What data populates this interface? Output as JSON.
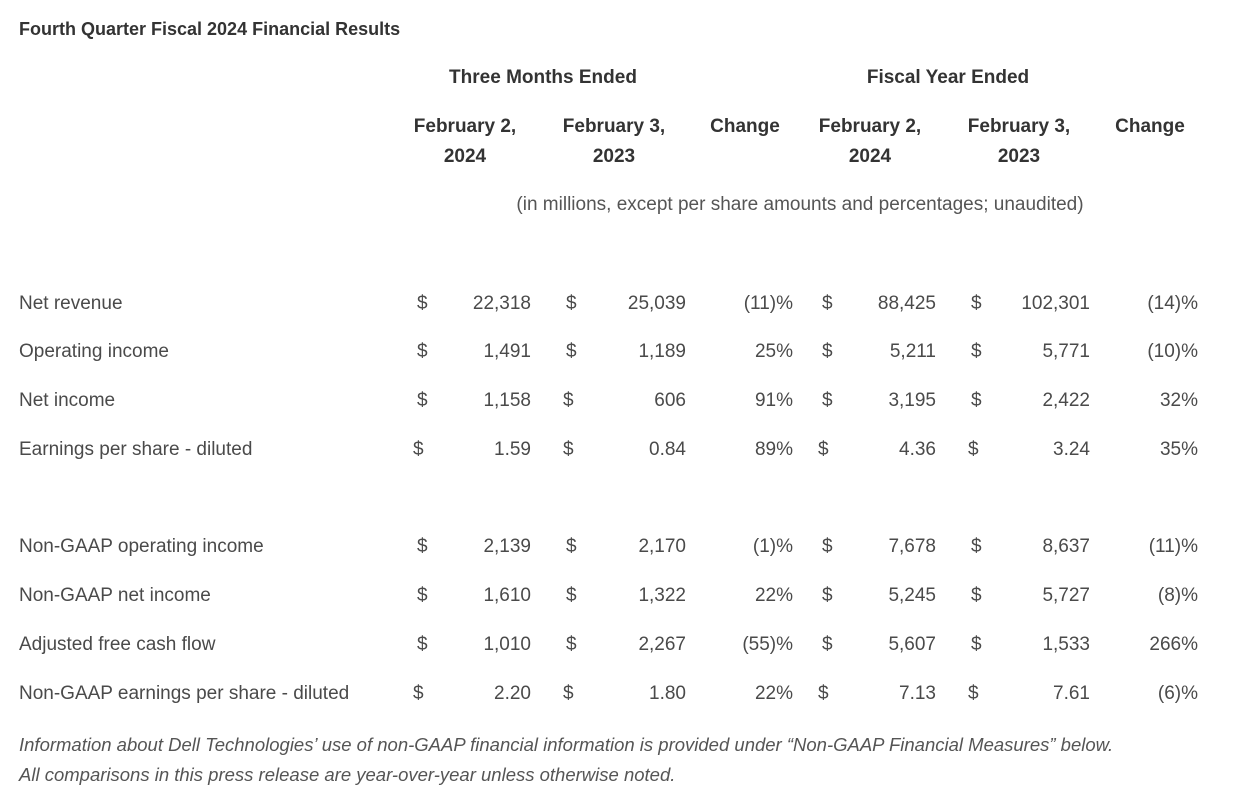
{
  "title": "Fourth Quarter Fiscal 2024 Financial Results",
  "headers": {
    "group_three_months": "Three Months Ended",
    "group_fiscal_year": "Fiscal Year Ended",
    "col_q_current": [
      "February 2,",
      "2024"
    ],
    "col_q_prior": [
      "February 3,",
      "2023"
    ],
    "col_q_change": "Change",
    "col_fy_current": [
      "February 2,",
      "2024"
    ],
    "col_fy_prior": [
      "February 3,",
      "2023"
    ],
    "col_fy_change": "Change",
    "units_note": "(in millions, except per share amounts and percentages; unaudited)"
  },
  "rows": [
    {
      "label": "Net revenue",
      "sq1": "$",
      "q_cur": "22,318",
      "sq2": "$",
      "q_prior": "25,039",
      "q_change": "(11)%",
      "sf1": "$",
      "fy_cur": "88,425",
      "sf2": "$",
      "fy_prior": "102,301",
      "fy_change": "(14)%"
    },
    {
      "label": "Operating income",
      "sq1": "$",
      "q_cur": "1,491",
      "sq2": "$",
      "q_prior": "1,189",
      "q_change": "25%",
      "sf1": "$",
      "fy_cur": "5,211",
      "sf2": "$",
      "fy_prior": "5,771",
      "fy_change": "(10)%"
    },
    {
      "label": "Net income",
      "sq1": "$",
      "q_cur": "1,158",
      "sq2": "$",
      "q_prior": "606",
      "q_change": "91%",
      "sf1": "$",
      "fy_cur": "3,195",
      "sf2": "$",
      "fy_prior": "2,422",
      "fy_change": "32%"
    },
    {
      "label": "Earnings per share - diluted",
      "sq1": "$",
      "q_cur": "1.59",
      "sq2": "$",
      "q_prior": "0.84",
      "q_change": "89%",
      "sf1": "$",
      "fy_cur": "4.36",
      "sf2": "$",
      "fy_prior": "3.24",
      "fy_change": "35%"
    },
    {
      "label": "Non-GAAP operating income",
      "sq1": "$",
      "q_cur": "2,139",
      "sq2": "$",
      "q_prior": "2,170",
      "q_change": "(1)%",
      "sf1": "$",
      "fy_cur": "7,678",
      "sf2": "$",
      "fy_prior": "8,637",
      "fy_change": "(11)%"
    },
    {
      "label": "Non-GAAP net income",
      "sq1": "$",
      "q_cur": "1,610",
      "sq2": "$",
      "q_prior": "1,322",
      "q_change": "22%",
      "sf1": "$",
      "fy_cur": "5,245",
      "sf2": "$",
      "fy_prior": "5,727",
      "fy_change": "(8)%"
    },
    {
      "label": "Adjusted free cash flow",
      "sq1": "$",
      "q_cur": "1,010",
      "sq2": "$",
      "q_prior": "2,267",
      "q_change": "(55)%",
      "sf1": "$",
      "fy_cur": "5,607",
      "sf2": "$",
      "fy_prior": "1,533",
      "fy_change": "266%"
    },
    {
      "label": "Non-GAAP earnings per share - diluted",
      "sq1": "$",
      "q_cur": "2.20",
      "sq2": "$",
      "q_prior": "1.80",
      "q_change": "22%",
      "sf1": "$",
      "fy_cur": "7.13",
      "sf2": "$",
      "fy_prior": "7.61",
      "fy_change": "(6)%"
    }
  ],
  "footnote": [
    "Information about Dell Technologies’ use of non-GAAP financial information is provided under “Non-GAAP Financial Measures” below.",
    "All comparisons in this press release are year-over-year unless otherwise noted."
  ]
}
